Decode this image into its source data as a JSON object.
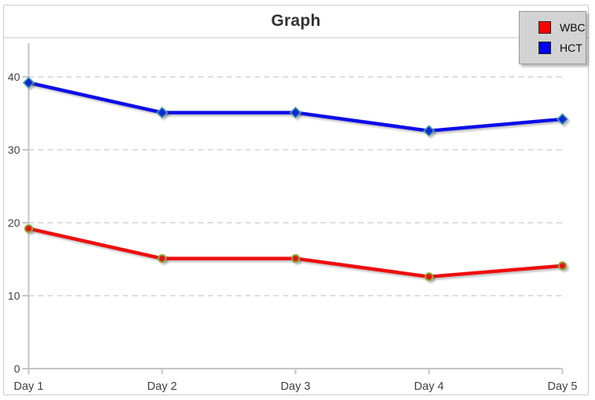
{
  "chart_data": {
    "type": "line",
    "title": "Graph",
    "categories": [
      "Day 1",
      "Day 2",
      "Day 3",
      "Day 4",
      "Day 5"
    ],
    "series": [
      {
        "name": "WBC",
        "line_color": "#ee1111",
        "legend_color": "#ff0000",
        "marker": "circle",
        "marker_fill": "#e31212",
        "marker_stroke": "#96a437",
        "values": [
          19.2,
          15.1,
          15.1,
          12.6,
          14.1
        ]
      },
      {
        "name": "HCT",
        "line_color": "#0d0de8",
        "legend_color": "#0000ff",
        "marker": "diamond",
        "marker_fill": "#0a2ad2",
        "marker_stroke": "#4b9aaa",
        "values": [
          39.2,
          35.1,
          35.1,
          32.6,
          34.2
        ]
      }
    ],
    "yticks": [
      0,
      10,
      20,
      30,
      40
    ],
    "ylim": [
      0,
      44.5
    ],
    "xlabel": "",
    "ylabel": "",
    "grid": true,
    "legend": {
      "position": "top-right",
      "entries": [
        "WBC",
        "HCT"
      ]
    }
  },
  "colors": {
    "grid_line": "#dedede",
    "axis_line": "#c5c5c5",
    "tick_text": "#404040",
    "title_text": "#333333",
    "legend_bg": "#d3d3d3",
    "legend_border": "#999999",
    "chart_border": "#c9c9c9",
    "background": "#ffffff"
  }
}
